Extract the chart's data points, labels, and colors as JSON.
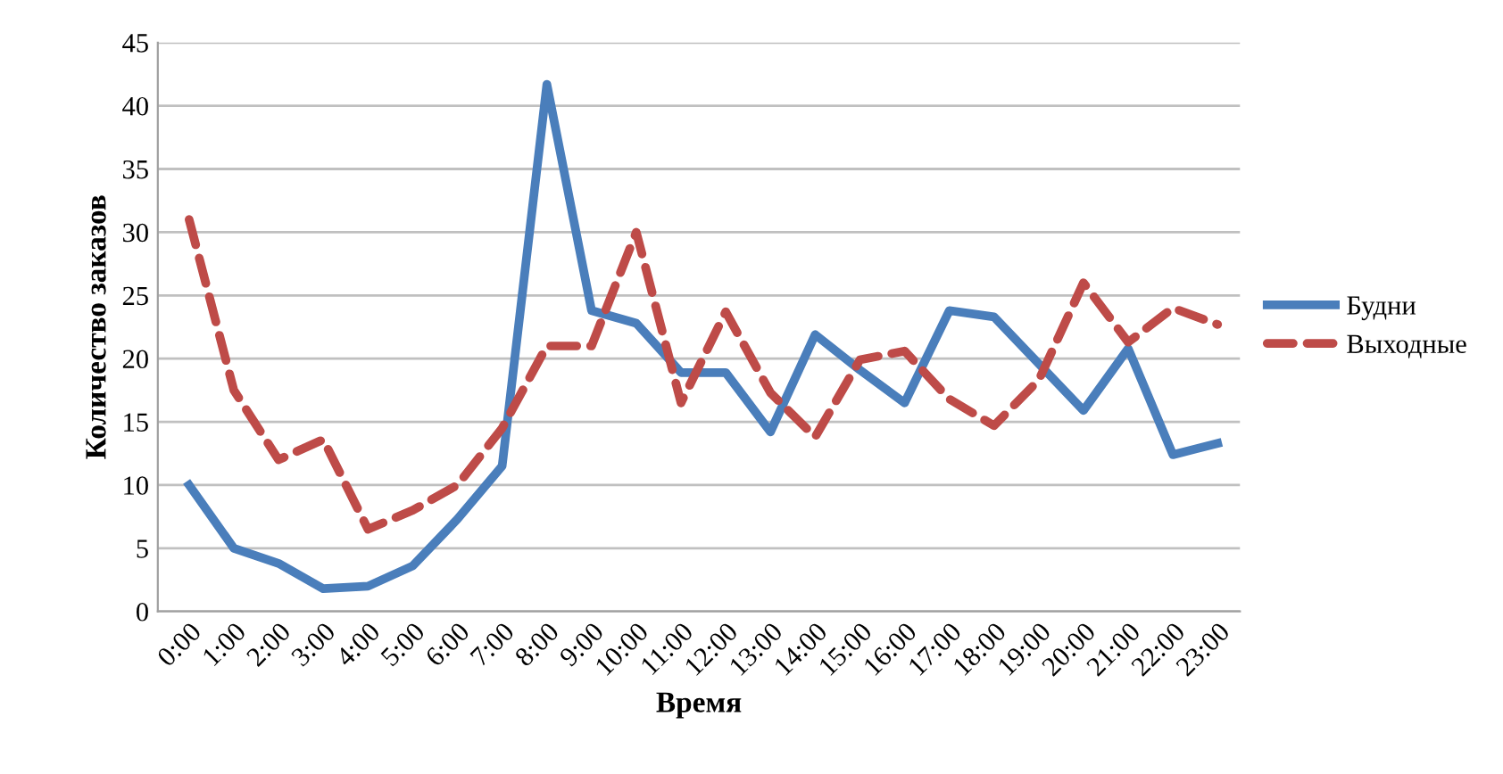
{
  "chart_data": {
    "type": "line",
    "xlabel": "Время",
    "ylabel": "Количество заказов",
    "categories": [
      "0:00",
      "1:00",
      "2:00",
      "3:00",
      "4:00",
      "5:00",
      "6:00",
      "7:00",
      "8:00",
      "9:00",
      "10:00",
      "11:00",
      "12:00",
      "13:00",
      "14:00",
      "15:00",
      "16:00",
      "17:00",
      "18:00",
      "19:00",
      "20:00",
      "21:00",
      "22:00",
      "23:00"
    ],
    "series": [
      {
        "name": "Будни",
        "color": "#4a7ebb",
        "line_style": "solid",
        "values": [
          10,
          5,
          3.8,
          1.8,
          2,
          3.6,
          7.3,
          11.5,
          41.7,
          23.8,
          22.8,
          18.9,
          18.9,
          14.2,
          21.9,
          19.1,
          16.5,
          23.8,
          23.3,
          19.6,
          15.9,
          20.8,
          12.4,
          13.3
        ]
      },
      {
        "name": "Выходные",
        "color": "#be4b48",
        "line_style": "dashed",
        "values": [
          31,
          17.5,
          12,
          13.6,
          6.5,
          8,
          10,
          14.5,
          21,
          21,
          30,
          16.5,
          23.7,
          17.3,
          13.8,
          19.9,
          20.6,
          16.8,
          14.7,
          18.3,
          26,
          21.3,
          24,
          22.7
        ]
      }
    ],
    "ylim": [
      0,
      45
    ],
    "yticks": [
      0,
      5,
      10,
      15,
      20,
      25,
      30,
      35,
      40,
      45
    ],
    "grid": "y",
    "legend": "right",
    "marker": "none"
  }
}
